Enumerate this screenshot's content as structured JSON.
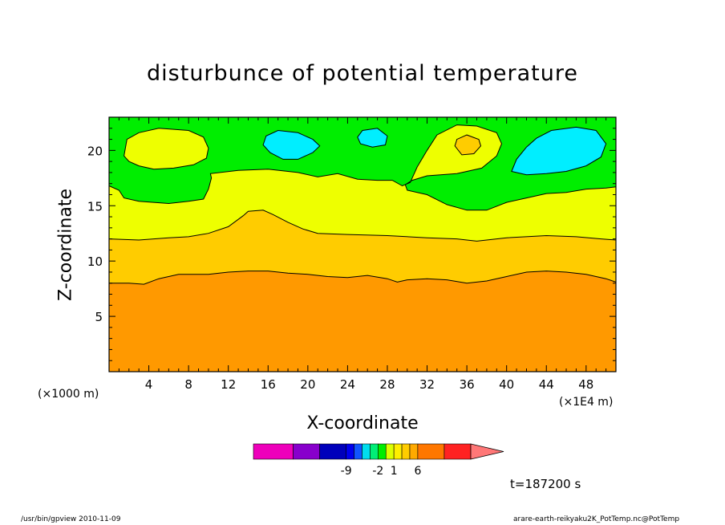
{
  "chart_data": {
    "type": "heatmap",
    "title": "disturbunce of potential temperature",
    "xlabel": "X-coordinate",
    "ylabel": "Z-coordinate",
    "x_unit_left": "(×1000 m)",
    "x_unit_right": "(×1E4 m)",
    "xlim": [
      0,
      51
    ],
    "ylim": [
      0,
      23
    ],
    "x_ticks": [
      4,
      8,
      12,
      16,
      20,
      24,
      28,
      32,
      36,
      40,
      44,
      48
    ],
    "y_ticks": [
      5,
      10,
      15,
      20
    ],
    "time_label": "t=187200 s",
    "colorbar": {
      "labels": [
        {
          "pos": 3,
          "text": "-9"
        },
        {
          "pos": 7,
          "text": "-2"
        },
        {
          "pos": 9,
          "text": "1"
        },
        {
          "pos": 12,
          "text": "6"
        }
      ],
      "colors": [
        "#ee00bb",
        "#8800cc",
        "#0000bb",
        "#0000ee",
        "#1155ff",
        "#00ddee",
        "#00ee77",
        "#00ee00",
        "#ddff00",
        "#ffee00",
        "#ffcc00",
        "#ffaa00",
        "#ff7700",
        "#ff2222",
        "#ff7777"
      ],
      "widths": [
        3,
        2,
        2,
        0.6,
        0.6,
        0.6,
        0.6,
        0.6,
        0.6,
        0.6,
        0.6,
        0.6,
        2,
        2,
        3
      ]
    },
    "fill_colors": {
      "bottom": "#ff9900",
      "level_warm": "#ffcc00",
      "level_mid": "#eeff00",
      "level_cool": "#00ee00",
      "level_cold": "#00eeff",
      "level_spot": "#ffcc00"
    },
    "contours": {
      "z8": [
        [
          0,
          8
        ],
        [
          2,
          8
        ],
        [
          3.5,
          7.9
        ],
        [
          5,
          8.4
        ],
        [
          7,
          8.8
        ],
        [
          10,
          8.8
        ],
        [
          12,
          9.0
        ],
        [
          14,
          9.1
        ],
        [
          16,
          9.1
        ],
        [
          18,
          8.9
        ],
        [
          20,
          8.8
        ],
        [
          22,
          8.6
        ],
        [
          24,
          8.5
        ],
        [
          26,
          8.7
        ],
        [
          28,
          8.4
        ],
        [
          29,
          8.1
        ],
        [
          30,
          8.3
        ],
        [
          32,
          8.4
        ],
        [
          34,
          8.3
        ],
        [
          36,
          8.0
        ],
        [
          38,
          8.2
        ],
        [
          40,
          8.6
        ],
        [
          42,
          9.0
        ],
        [
          44,
          9.1
        ],
        [
          46,
          9.0
        ],
        [
          48,
          8.8
        ],
        [
          50,
          8.4
        ],
        [
          51,
          8.1
        ]
      ],
      "z12": [
        [
          0,
          12
        ],
        [
          3,
          11.9
        ],
        [
          6,
          12.1
        ],
        [
          8,
          12.2
        ],
        [
          10,
          12.5
        ],
        [
          12,
          13.1
        ],
        [
          13.5,
          14.1
        ],
        [
          14,
          14.5
        ],
        [
          15.5,
          14.6
        ],
        [
          16.5,
          14.2
        ],
        [
          18,
          13.5
        ],
        [
          19.5,
          12.9
        ],
        [
          21,
          12.5
        ],
        [
          24,
          12.4
        ],
        [
          28,
          12.3
        ],
        [
          32,
          12.1
        ],
        [
          35,
          12.0
        ],
        [
          37,
          11.8
        ],
        [
          40,
          12.1
        ],
        [
          44,
          12.3
        ],
        [
          47,
          12.2
        ],
        [
          49.5,
          12.0
        ],
        [
          51,
          11.9
        ]
      ],
      "z17": [
        [
          0,
          16.8
        ],
        [
          1,
          16.4
        ],
        [
          1.5,
          15.7
        ],
        [
          3,
          15.4
        ],
        [
          6,
          15.2
        ],
        [
          8,
          15.4
        ],
        [
          9.5,
          15.6
        ],
        [
          10,
          16.5
        ],
        [
          10.3,
          17.5
        ],
        [
          10.2,
          17.9
        ],
        [
          13,
          18.2
        ],
        [
          16,
          18.3
        ],
        [
          19,
          18.0
        ],
        [
          21,
          17.6
        ],
        [
          23,
          17.9
        ],
        [
          25,
          17.4
        ],
        [
          27,
          17.3
        ],
        [
          28.5,
          17.3
        ],
        [
          29.5,
          16.8
        ],
        [
          30.3,
          17.1
        ],
        [
          31,
          18.5
        ],
        [
          32,
          20.0
        ],
        [
          33,
          21.4
        ],
        [
          35,
          22.3
        ],
        [
          37,
          22.2
        ],
        [
          39,
          21.6
        ],
        [
          39.5,
          20.6
        ],
        [
          39,
          19.5
        ],
        [
          37.5,
          18.4
        ],
        [
          35,
          17.9
        ],
        [
          32,
          17.7
        ],
        [
          30.5,
          17.3
        ],
        [
          29.8,
          16.9
        ],
        [
          30,
          16.4
        ],
        [
          32,
          16.0
        ],
        [
          34,
          15.1
        ],
        [
          36,
          14.6
        ],
        [
          38,
          14.6
        ],
        [
          40,
          15.3
        ],
        [
          42,
          15.7
        ],
        [
          44,
          16.1
        ],
        [
          46,
          16.2
        ],
        [
          48,
          16.5
        ],
        [
          50,
          16.6
        ],
        [
          51,
          16.7
        ]
      ],
      "yellow_blob": [
        [
          1.5,
          19.5
        ],
        [
          1.8,
          21.0
        ],
        [
          3,
          21.6
        ],
        [
          5,
          22.0
        ],
        [
          8,
          21.8
        ],
        [
          9.5,
          21.2
        ],
        [
          10,
          20.2
        ],
        [
          9.8,
          19.3
        ],
        [
          8.5,
          18.7
        ],
        [
          6.5,
          18.4
        ],
        [
          4.5,
          18.3
        ],
        [
          3,
          18.6
        ],
        [
          2,
          19.0
        ]
      ],
      "cyan_a": [
        [
          15.5,
          20.5
        ],
        [
          15.8,
          21.3
        ],
        [
          17,
          21.8
        ],
        [
          19,
          21.6
        ],
        [
          20.5,
          21.0
        ],
        [
          21.2,
          20.4
        ],
        [
          20.5,
          19.8
        ],
        [
          19,
          19.2
        ],
        [
          17.5,
          19.2
        ],
        [
          16.2,
          19.8
        ]
      ],
      "cyan_b": [
        [
          25,
          21.2
        ],
        [
          25.5,
          21.8
        ],
        [
          27,
          22.0
        ],
        [
          28,
          21.3
        ],
        [
          27.8,
          20.5
        ],
        [
          26.5,
          20.3
        ],
        [
          25.3,
          20.6
        ]
      ],
      "cyan_c": [
        [
          40.5,
          18.1
        ],
        [
          41,
          19.2
        ],
        [
          42,
          20.3
        ],
        [
          43,
          21.1
        ],
        [
          44.5,
          21.8
        ],
        [
          47,
          22.1
        ],
        [
          49,
          21.8
        ],
        [
          50,
          20.6
        ],
        [
          49.5,
          19.4
        ],
        [
          48,
          18.6
        ],
        [
          46,
          18.1
        ],
        [
          44,
          17.9
        ],
        [
          42,
          17.8
        ]
      ],
      "orange_spot": [
        [
          34.8,
          20.4
        ],
        [
          35,
          21.0
        ],
        [
          36,
          21.4
        ],
        [
          37.2,
          21.0
        ],
        [
          37.4,
          20.4
        ],
        [
          36.7,
          19.7
        ],
        [
          35.5,
          19.6
        ]
      ]
    }
  },
  "footer": {
    "left": "/usr/bin/gpview  2010-11-09",
    "right": "arare-earth-reikyaku2K_PotTemp.nc@PotTemp"
  }
}
